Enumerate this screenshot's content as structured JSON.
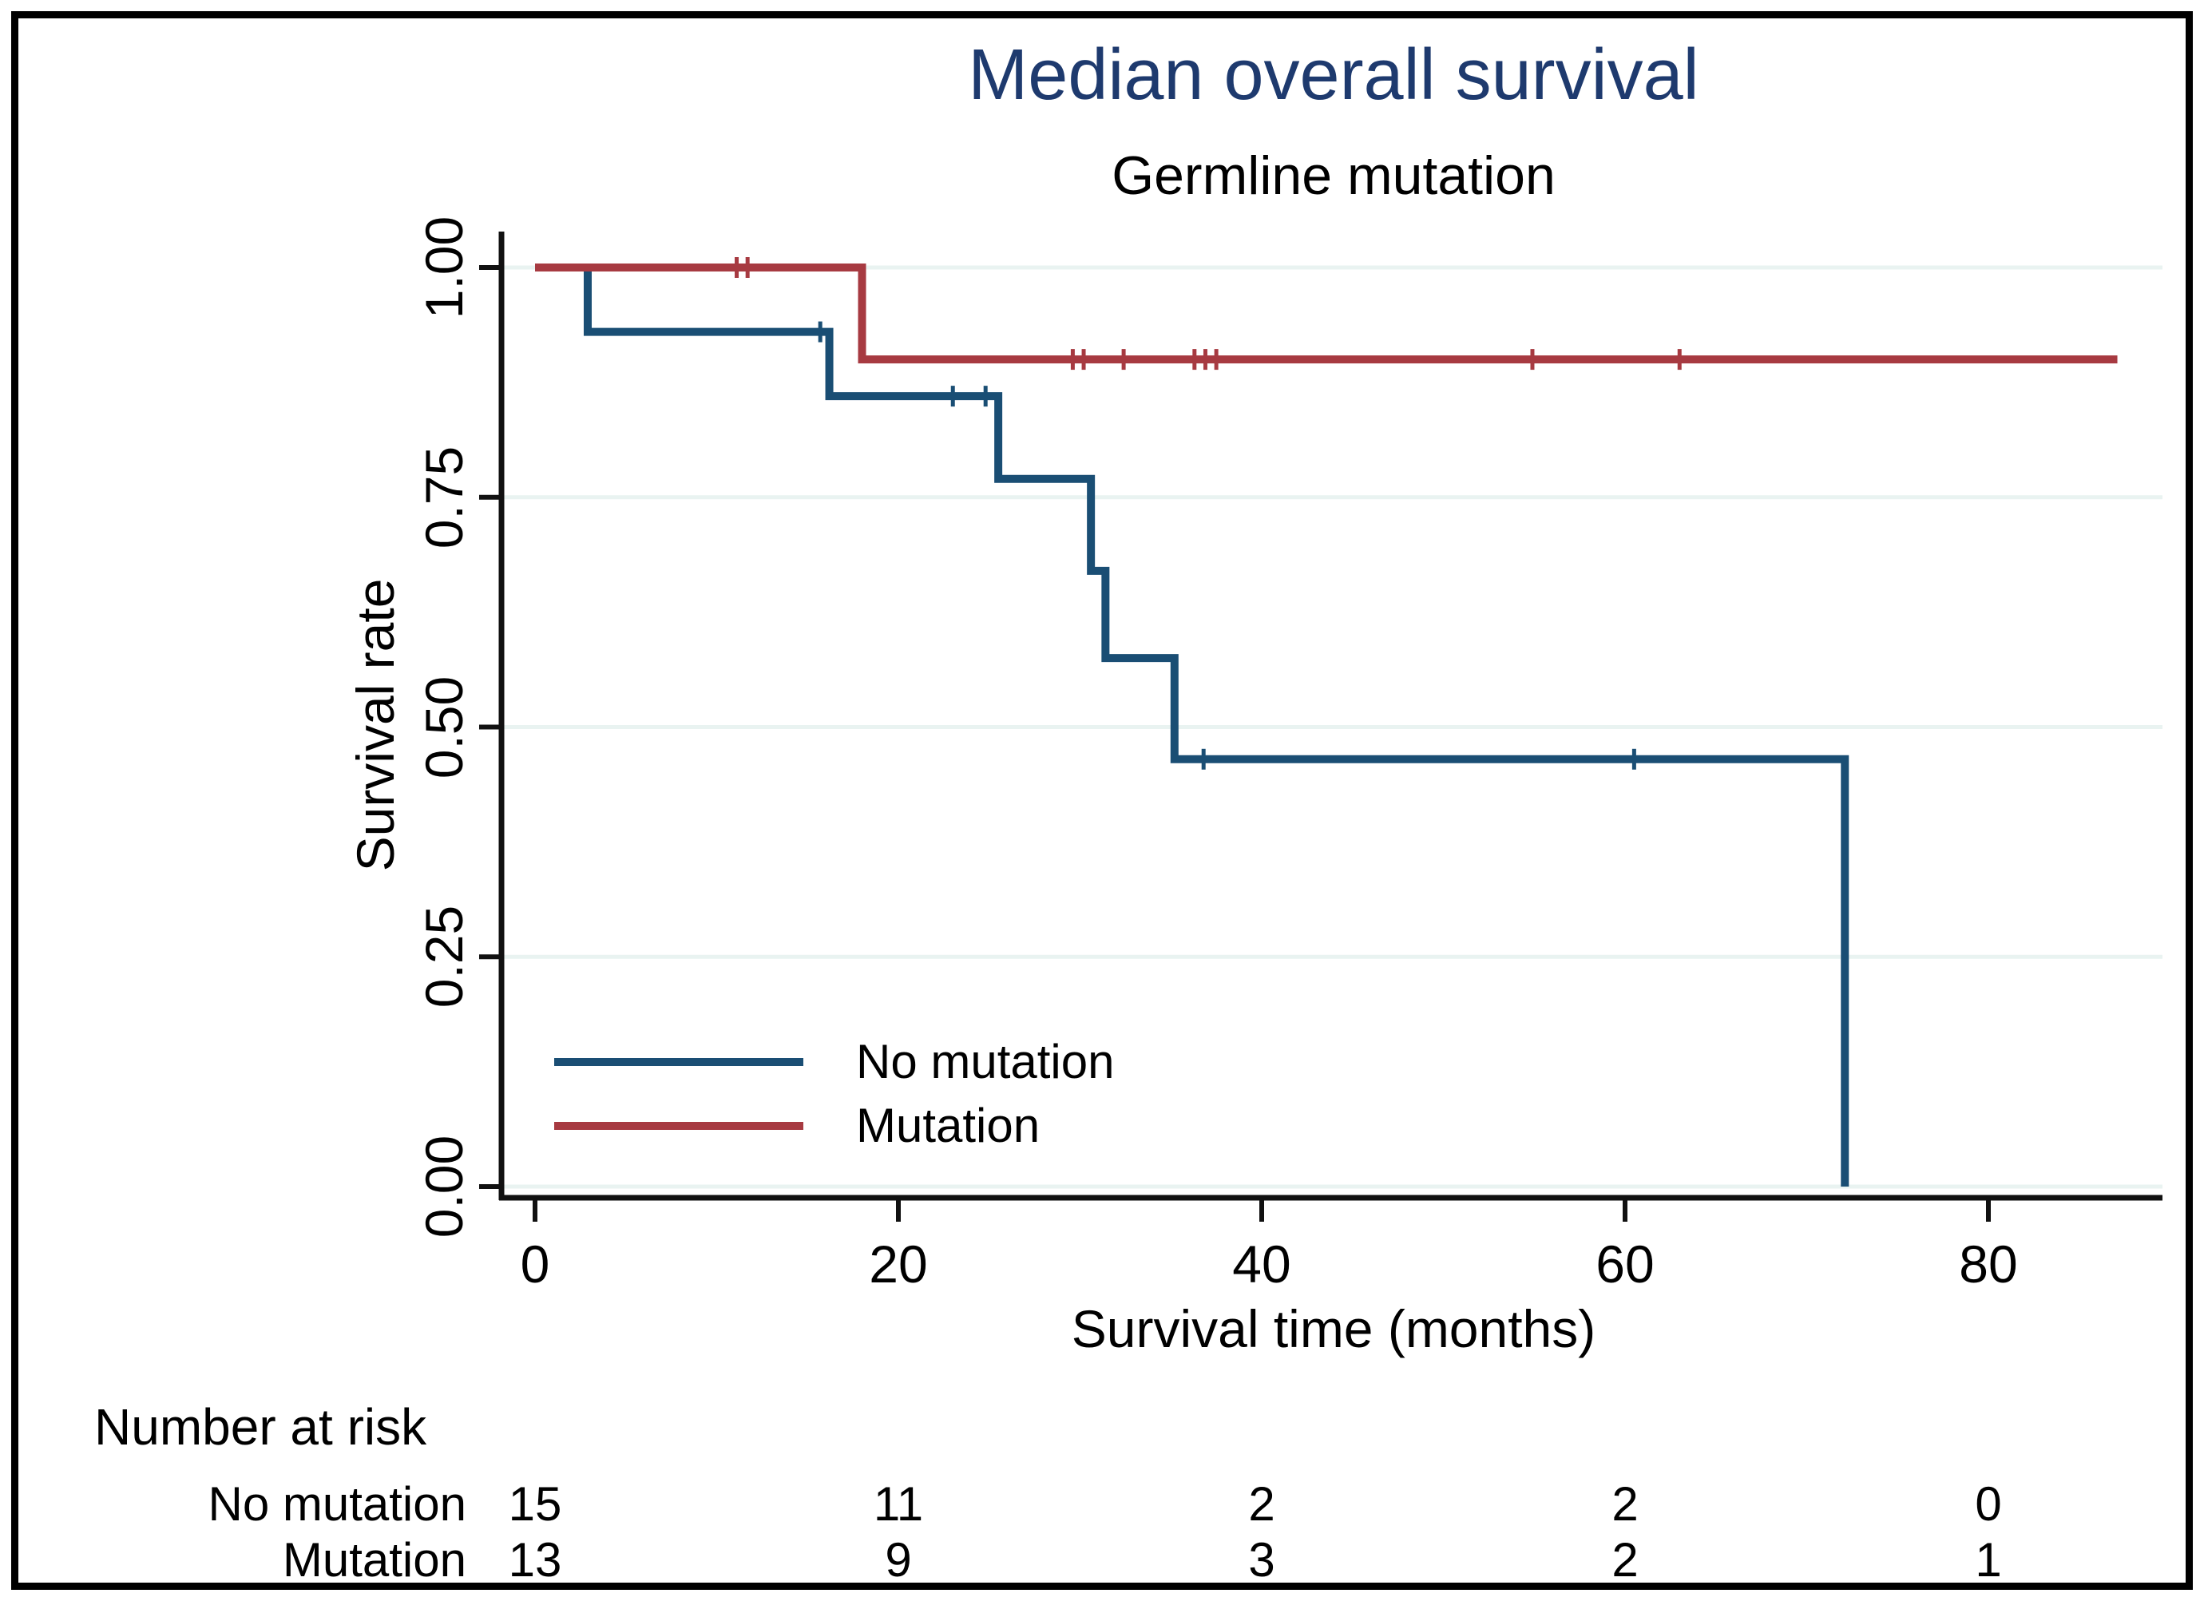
{
  "title": "Median overall survival",
  "subtitle": "Germline mutation",
  "colors": {
    "title_navy": "#1e3a6e",
    "no_mutation_blue": "#1a4e74",
    "mutation_red": "#a73a41",
    "gridline": "#e9f3f1",
    "axis_black": "#111111"
  },
  "axes": {
    "x": {
      "label": "Survival time (months)",
      "ticks": [
        "0",
        "20",
        "40",
        "60",
        "80"
      ],
      "tick_values": [
        0,
        20,
        40,
        60,
        80
      ],
      "range": [
        0,
        89.5
      ]
    },
    "y": {
      "label": "Survival rate",
      "ticks": [
        "0.00",
        "0.25",
        "0.50",
        "0.75",
        "1.00"
      ],
      "tick_values": [
        0,
        0.25,
        0.5,
        0.75,
        1.0
      ],
      "range": [
        0,
        1
      ],
      "grid": true
    }
  },
  "chart_data": {
    "type": "line",
    "chart_kind": "kaplan-meier-step",
    "title": "Median overall survival",
    "subtitle": "Germline mutation",
    "xlabel": "Survival time (months)",
    "ylabel": "Survival rate",
    "xlim": [
      0,
      89.5
    ],
    "ylim": [
      0,
      1
    ],
    "grid": "horizontal",
    "series": [
      {
        "name": "No mutation",
        "color": "#1a4e74",
        "steps": [
          [
            0,
            1.0
          ],
          [
            2.9,
            0.93
          ],
          [
            16.2,
            0.86
          ],
          [
            25.5,
            0.77
          ],
          [
            30.6,
            0.67
          ],
          [
            31.4,
            0.575
          ],
          [
            35.2,
            0.465
          ],
          [
            72.1,
            0.0
          ]
        ],
        "end_time": 72.1,
        "censor_marks": [
          [
            15.7,
            0.93
          ],
          [
            23.0,
            0.86
          ],
          [
            24.8,
            0.86
          ],
          [
            36.8,
            0.465
          ],
          [
            60.5,
            0.465
          ]
        ]
      },
      {
        "name": "Mutation",
        "color": "#a73a41",
        "steps": [
          [
            0,
            1.0
          ],
          [
            18.0,
            0.9
          ]
        ],
        "end_time": 87.1,
        "censor_marks": [
          [
            11.1,
            1.0
          ],
          [
            11.7,
            1.0
          ],
          [
            29.6,
            0.9
          ],
          [
            30.2,
            0.9
          ],
          [
            32.4,
            0.9
          ],
          [
            36.3,
            0.9
          ],
          [
            36.9,
            0.9
          ],
          [
            37.5,
            0.9
          ],
          [
            54.9,
            0.9
          ],
          [
            63.0,
            0.9
          ]
        ]
      }
    ]
  },
  "legend": {
    "items": [
      {
        "label": "No mutation",
        "color": "#1a4e74"
      },
      {
        "label": "Mutation",
        "color": "#a73a41"
      }
    ]
  },
  "risk_table": {
    "header": "Number at risk",
    "time_points": [
      0,
      20,
      40,
      60,
      80
    ],
    "rows": [
      {
        "label": "No mutation",
        "values": [
          "15",
          "11",
          "2",
          "2",
          "0"
        ]
      },
      {
        "label": "Mutation",
        "values": [
          "13",
          "9",
          "3",
          "2",
          "1"
        ]
      }
    ]
  }
}
